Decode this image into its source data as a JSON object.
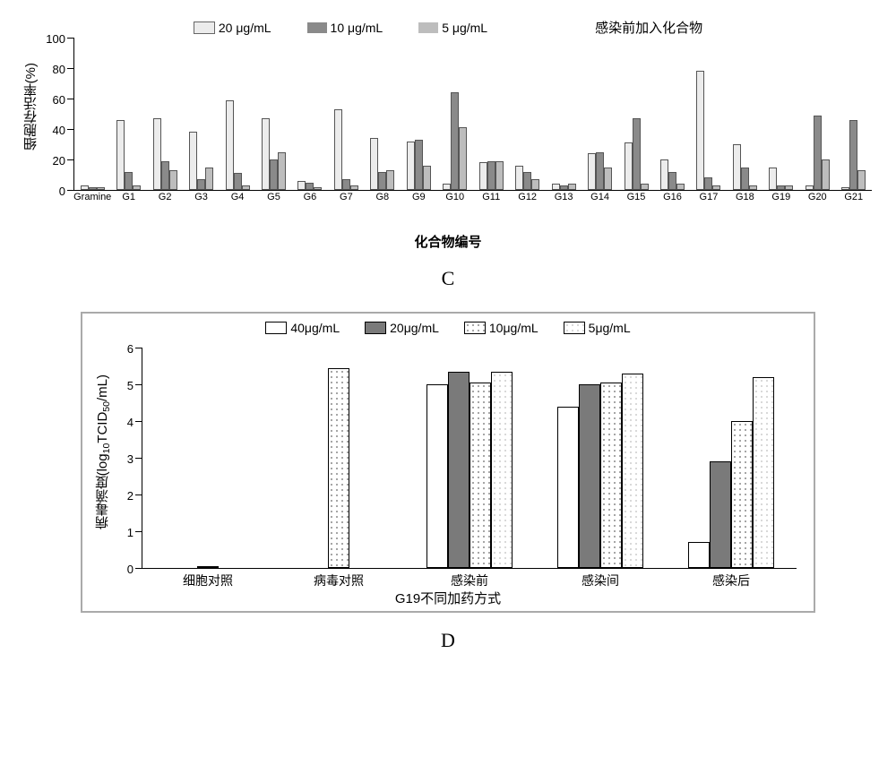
{
  "chartC": {
    "title_annot": "感染前加入化合物",
    "xlabel": "化合物编号",
    "ylabel": "细胞存活率(%)",
    "fig_letter": "C",
    "ymax": 100,
    "ytick_step": 20,
    "series": [
      {
        "label": "20 μg/mL",
        "color": "#ececec"
      },
      {
        "label": "10 μg/mL",
        "color": "#8a8a8a"
      },
      {
        "label": "5 μg/mL",
        "color": "#bdbdbd"
      }
    ],
    "categories": [
      "Gramine",
      "G1",
      "G2",
      "G3",
      "G4",
      "G5",
      "G6",
      "G7",
      "G8",
      "G9",
      "G10",
      "G11",
      "G12",
      "G13",
      "G14",
      "G15",
      "G16",
      "G17",
      "G18",
      "G19",
      "G20",
      "G21"
    ],
    "values20": [
      3,
      46,
      47,
      38,
      59,
      47,
      6,
      53,
      34,
      32,
      4,
      18,
      16,
      4,
      24,
      31,
      20,
      78,
      30,
      15,
      3,
      2
    ],
    "values10": [
      2,
      12,
      19,
      7,
      11,
      20,
      5,
      7,
      12,
      33,
      64,
      19,
      12,
      3,
      25,
      47,
      12,
      8,
      15,
      3,
      49,
      46
    ],
    "values5": [
      2,
      3,
      13,
      15,
      3,
      25,
      2,
      3,
      13,
      16,
      41,
      19,
      7,
      4,
      15,
      4,
      4,
      3,
      3,
      3,
      20,
      13
    ]
  },
  "chartD": {
    "xlabel": "G19不同加药方式",
    "ylabel": "病毒滴度(log₁₀TCID₅₀/mL)",
    "ylabel_plain": "病毒滴度(log10TCID50/mL)",
    "fig_letter": "D",
    "ymax": 6,
    "ytick_step": 1,
    "series": [
      {
        "label": "40μg/mL",
        "fill": "white"
      },
      {
        "label": "20μg/mL",
        "fill": "solid"
      },
      {
        "label": "10μg/mL",
        "fill": "dots"
      },
      {
        "label": "5μg/mL",
        "fill": "lightdots"
      }
    ],
    "colors": {
      "solid": "#7a7a7a",
      "white": "#ffffff"
    },
    "categories": [
      "细胞对照",
      "病毒对照",
      "感染前",
      "感染间",
      "感染后"
    ],
    "data": {
      "细胞对照": [
        null,
        0.06,
        null,
        null
      ],
      "病毒对照": [
        null,
        null,
        5.45,
        null
      ],
      "感染前": [
        5.0,
        5.35,
        5.05,
        5.35
      ],
      "感染间": [
        4.4,
        5.0,
        5.05,
        5.3
      ],
      "感染后": [
        0.7,
        2.9,
        4.0,
        5.2
      ]
    }
  }
}
